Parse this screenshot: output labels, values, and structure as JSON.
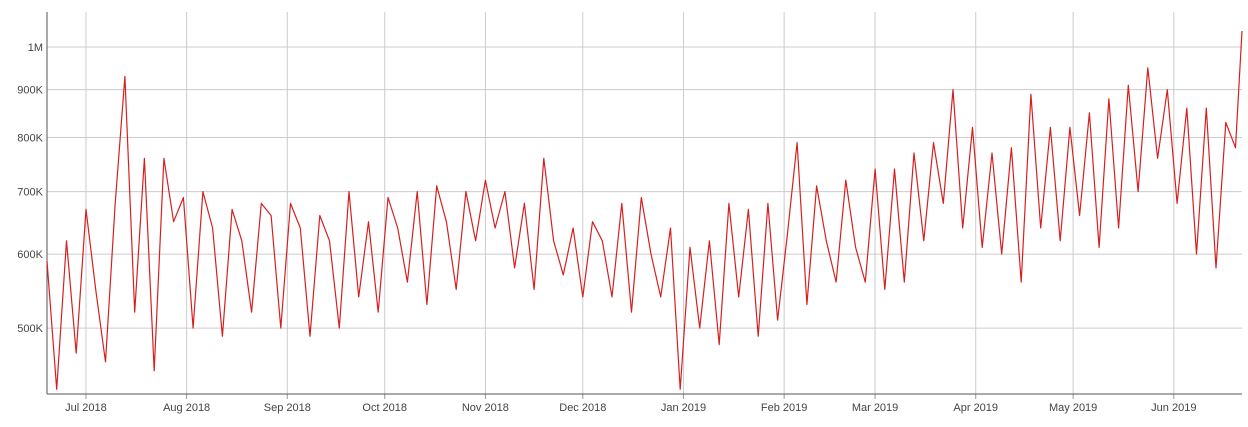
{
  "chart_data": {
    "type": "line",
    "title": "",
    "xlabel": "",
    "ylabel": "",
    "y_scale": "log",
    "ylim": [
      425000,
      1090000
    ],
    "xlim": [
      "2018-06-19",
      "2019-06-22"
    ],
    "grid": true,
    "legend": "none",
    "colors": {
      "line": "#d62020",
      "grid": "#cccccc",
      "axis": "#555555",
      "text": "#444444"
    },
    "y_ticks": [
      {
        "value": 500000,
        "label": "500K"
      },
      {
        "value": 600000,
        "label": "600K"
      },
      {
        "value": 700000,
        "label": "700K"
      },
      {
        "value": 800000,
        "label": "800K"
      },
      {
        "value": 900000,
        "label": "900K"
      },
      {
        "value": 1000000,
        "label": "1M"
      }
    ],
    "x_ticks": [
      {
        "date": "2018-07-01",
        "label": "Jul 2018"
      },
      {
        "date": "2018-08-01",
        "label": "Aug 2018"
      },
      {
        "date": "2018-09-01",
        "label": "Sep 2018"
      },
      {
        "date": "2018-10-01",
        "label": "Oct 2018"
      },
      {
        "date": "2018-11-01",
        "label": "Nov 2018"
      },
      {
        "date": "2018-12-01",
        "label": "Dec 2018"
      },
      {
        "date": "2019-01-01",
        "label": "Jan 2019"
      },
      {
        "date": "2019-02-01",
        "label": "Feb 2019"
      },
      {
        "date": "2019-03-01",
        "label": "Mar 2019"
      },
      {
        "date": "2019-04-01",
        "label": "Apr 2019"
      },
      {
        "date": "2019-05-01",
        "label": "May 2019"
      },
      {
        "date": "2019-06-01",
        "label": "Jun 2019"
      }
    ],
    "series": [
      {
        "x": [
          "2018-06-19",
          "2018-06-22",
          "2018-06-25",
          "2018-06-28",
          "2018-07-01",
          "2018-07-04",
          "2018-07-07",
          "2018-07-10",
          "2018-07-13",
          "2018-07-16",
          "2018-07-19",
          "2018-07-22",
          "2018-07-25",
          "2018-07-28",
          "2018-07-31",
          "2018-08-03",
          "2018-08-06",
          "2018-08-09",
          "2018-08-12",
          "2018-08-15",
          "2018-08-18",
          "2018-08-21",
          "2018-08-24",
          "2018-08-27",
          "2018-08-30",
          "2018-09-02",
          "2018-09-05",
          "2018-09-08",
          "2018-09-11",
          "2018-09-14",
          "2018-09-17",
          "2018-09-20",
          "2018-09-23",
          "2018-09-26",
          "2018-09-29",
          "2018-10-02",
          "2018-10-05",
          "2018-10-08",
          "2018-10-11",
          "2018-10-14",
          "2018-10-17",
          "2018-10-20",
          "2018-10-23",
          "2018-10-26",
          "2018-10-29",
          "2018-11-01",
          "2018-11-04",
          "2018-11-07",
          "2018-11-10",
          "2018-11-13",
          "2018-11-16",
          "2018-11-19",
          "2018-11-22",
          "2018-11-25",
          "2018-11-28",
          "2018-12-01",
          "2018-12-04",
          "2018-12-07",
          "2018-12-10",
          "2018-12-13",
          "2018-12-16",
          "2018-12-19",
          "2018-12-22",
          "2018-12-25",
          "2018-12-28",
          "2018-12-31",
          "2019-01-03",
          "2019-01-06",
          "2019-01-09",
          "2019-01-12",
          "2019-01-15",
          "2019-01-18",
          "2019-01-21",
          "2019-01-24",
          "2019-01-27",
          "2019-01-30",
          "2019-02-02",
          "2019-02-05",
          "2019-02-08",
          "2019-02-11",
          "2019-02-14",
          "2019-02-17",
          "2019-02-20",
          "2019-02-23",
          "2019-02-26",
          "2019-03-01",
          "2019-03-04",
          "2019-03-07",
          "2019-03-10",
          "2019-03-13",
          "2019-03-16",
          "2019-03-19",
          "2019-03-22",
          "2019-03-25",
          "2019-03-28",
          "2019-03-31",
          "2019-04-03",
          "2019-04-06",
          "2019-04-09",
          "2019-04-12",
          "2019-04-15",
          "2019-04-18",
          "2019-04-21",
          "2019-04-24",
          "2019-04-27",
          "2019-04-30",
          "2019-05-03",
          "2019-05-06",
          "2019-05-09",
          "2019-05-12",
          "2019-05-15",
          "2019-05-18",
          "2019-05-21",
          "2019-05-24",
          "2019-05-27",
          "2019-05-30",
          "2019-06-02",
          "2019-06-05",
          "2019-06-08",
          "2019-06-11",
          "2019-06-14",
          "2019-06-17",
          "2019-06-20",
          "2019-06-22"
        ],
        "values": [
          590000,
          430000,
          620000,
          470000,
          670000,
          550000,
          460000,
          680000,
          930000,
          520000,
          760000,
          450000,
          760000,
          650000,
          690000,
          500000,
          700000,
          640000,
          490000,
          670000,
          620000,
          520000,
          680000,
          660000,
          500000,
          680000,
          640000,
          490000,
          660000,
          620000,
          500000,
          700000,
          540000,
          650000,
          520000,
          690000,
          640000,
          560000,
          700000,
          530000,
          710000,
          650000,
          550000,
          700000,
          620000,
          720000,
          640000,
          700000,
          580000,
          680000,
          550000,
          760000,
          620000,
          570000,
          640000,
          540000,
          650000,
          620000,
          540000,
          680000,
          520000,
          690000,
          600000,
          540000,
          640000,
          430000,
          610000,
          500000,
          620000,
          480000,
          680000,
          540000,
          670000,
          490000,
          680000,
          510000,
          630000,
          790000,
          530000,
          710000,
          620000,
          560000,
          720000,
          610000,
          560000,
          740000,
          550000,
          740000,
          560000,
          770000,
          620000,
          790000,
          680000,
          900000,
          640000,
          820000,
          610000,
          770000,
          600000,
          780000,
          560000,
          890000,
          640000,
          820000,
          620000,
          820000,
          660000,
          850000,
          610000,
          880000,
          640000,
          910000,
          700000,
          950000,
          760000,
          900000,
          680000,
          860000,
          600000,
          860000,
          580000,
          830000,
          780000,
          1040000
        ]
      }
    ]
  }
}
